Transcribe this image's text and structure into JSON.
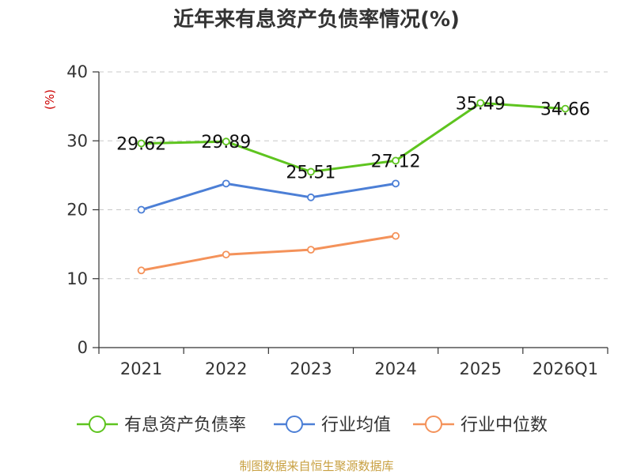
{
  "chart_data": {
    "type": "line",
    "title": "近年来有息资产负债率情况(%)",
    "ylabel": "(%)",
    "ylabel_color": "#cc0000",
    "categories": [
      "2021",
      "2022",
      "2023",
      "2024",
      "2025",
      "2026Q1"
    ],
    "ylim": [
      0,
      40
    ],
    "yticks": [
      0,
      10,
      20,
      30,
      40
    ],
    "grid": true,
    "legend_position": "bottom",
    "series": [
      {
        "name": "有息资产负债率",
        "color": "#5ec41f",
        "show_labels": true,
        "values": [
          29.62,
          29.89,
          25.51,
          27.12,
          35.49,
          34.66
        ]
      },
      {
        "name": "行业均值",
        "color": "#4c7fd6",
        "show_labels": false,
        "values": [
          20.0,
          23.8,
          21.8,
          23.8,
          null,
          null
        ]
      },
      {
        "name": "行业中位数",
        "color": "#f4925a",
        "show_labels": false,
        "values": [
          11.2,
          13.5,
          14.2,
          16.2,
          null,
          null
        ]
      }
    ]
  },
  "source": "制图数据来自恒生聚源数据库"
}
